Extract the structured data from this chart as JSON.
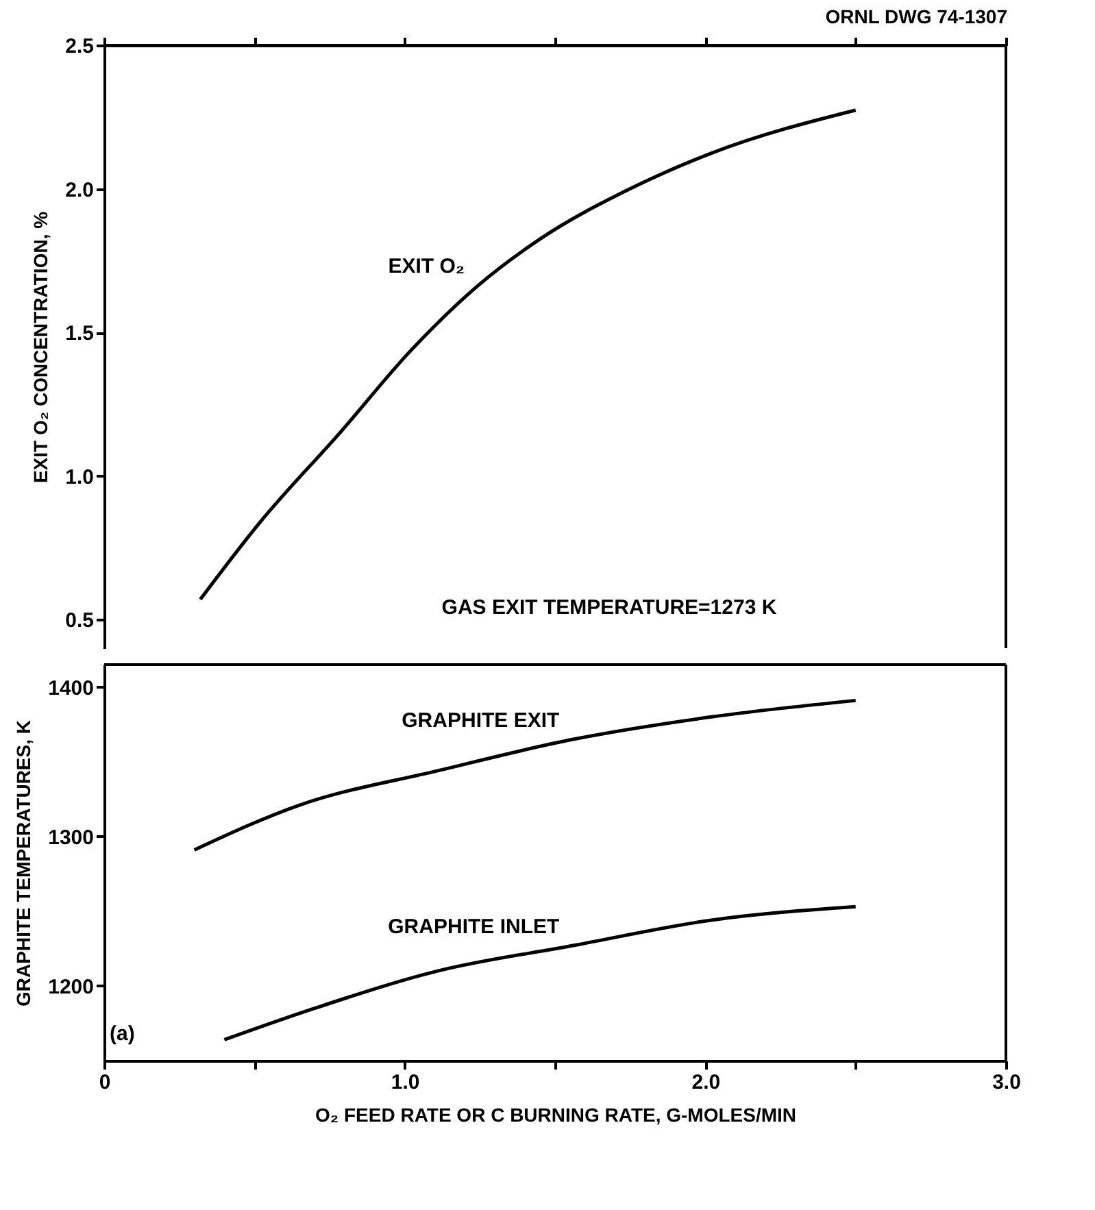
{
  "chart_data": [
    {
      "type": "line",
      "ylabel": "EXIT O₂ CONCENTRATION, %",
      "annotations": [
        "ORNL DWG 74-1307",
        "GAS EXIT TEMPERATURE=1273 K"
      ],
      "series": [
        {
          "name": "EXIT O₂",
          "color": "#000000",
          "x": [
            0.32,
            0.515,
            0.79,
            1.017,
            1.245,
            1.45,
            1.746,
            2.02,
            2.5
          ],
          "values": [
            0.57,
            0.834,
            1.157,
            1.433,
            1.664,
            1.825,
            1.998,
            2.124,
            2.274
          ]
        }
      ],
      "xlim": [
        0,
        3
      ],
      "xticks": [
        0,
        0.5,
        1,
        1.5,
        2,
        2.5,
        3
      ],
      "ylim": [
        0.4,
        2.5
      ],
      "yticks": [
        0.5,
        {
          "value": 1,
          "label": "1.0"
        },
        1.5,
        {
          "value": 2,
          "label": "2.0"
        },
        2.5
      ],
      "tick_labels": "y"
    },
    {
      "type": "line",
      "xlabel": "O₂ FEED RATE OR C BURNING RATE, G-MOLES/MIN",
      "ylabel": "GRAPHITE TEMPERATURES, K",
      "annotations": [
        "(a)"
      ],
      "series": [
        {
          "name": "GRAPHITE EXIT",
          "color": "#000000",
          "x": [
            0.3,
            0.65,
            1.11,
            1.56,
            2.02,
            2.5
          ],
          "values": [
            1291,
            1321,
            1344,
            1365,
            1380,
            1391
          ]
        },
        {
          "name": "GRAPHITE INLET",
          "color": "#000000",
          "x": [
            0.4,
            0.7,
            1.11,
            1.56,
            2.02,
            2.5
          ],
          "values": [
            1164,
            1185,
            1210,
            1227,
            1244,
            1253
          ]
        }
      ],
      "xlim": [
        0,
        3
      ],
      "xticks": [
        0,
        {
          "value": 0.5,
          "label": null
        },
        {
          "value": 1,
          "label": "1.0"
        },
        {
          "value": 1.5,
          "label": null
        },
        {
          "value": 2,
          "label": "2.0"
        },
        {
          "value": 2.5,
          "label": null
        },
        {
          "value": 3,
          "label": "3.0"
        }
      ],
      "ylim": [
        1150,
        1415
      ],
      "yticks": [
        1200,
        1300,
        1400
      ]
    }
  ]
}
